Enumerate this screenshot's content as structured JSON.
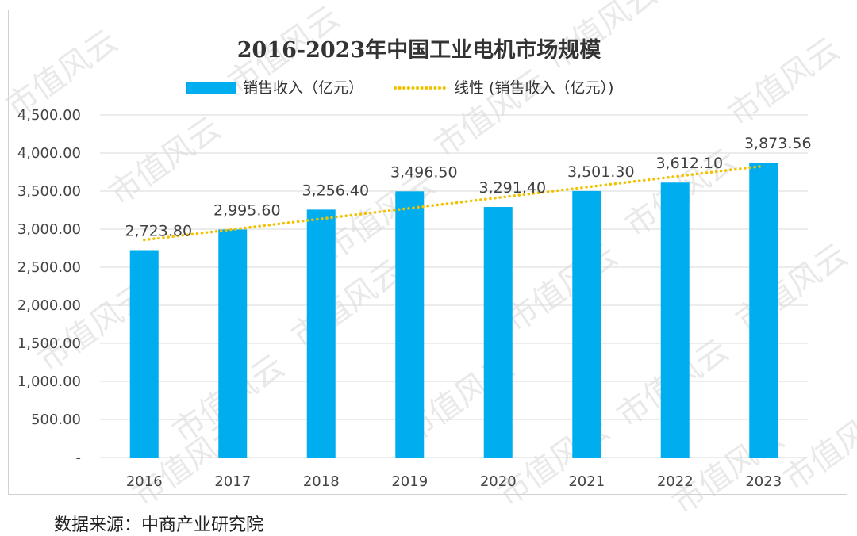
{
  "watermark": "市值风云",
  "source": "数据来源：中商产业研究院",
  "chart_data": {
    "type": "bar",
    "title": "2016-2023年中国工业电机市场规模",
    "categories": [
      "2016",
      "2017",
      "2018",
      "2019",
      "2020",
      "2021",
      "2022",
      "2023"
    ],
    "series": [
      {
        "name": "销售收入（亿元）",
        "values": [
          2723.8,
          2995.6,
          3256.4,
          3496.5,
          3291.4,
          3501.3,
          3612.1,
          3873.56
        ],
        "labels": [
          "2,723.80",
          "2,995.60",
          "3,256.40",
          "3,496.50",
          "3,291.40",
          "3,501.30",
          "3,612.10",
          "3,873.56"
        ]
      }
    ],
    "trendline": {
      "name": "线性 (销售收入（亿元）)",
      "type": "linear"
    },
    "ylim": [
      0,
      4500
    ],
    "yticks": [
      0,
      500,
      1000,
      1500,
      2000,
      2500,
      3000,
      3500,
      4000,
      4500
    ],
    "ytick_labels": [
      "-",
      "500.00",
      "1,000.00",
      "1,500.00",
      "2,000.00",
      "2,500.00",
      "3,000.00",
      "3,500.00",
      "4,000.00",
      "4,500.00"
    ],
    "xlabel": "",
    "ylabel": "",
    "grid": true,
    "legend_position": "top",
    "colors": {
      "bar": "#00AEEF",
      "trend": "#F2C200",
      "grid": "#d9d9d9"
    }
  }
}
